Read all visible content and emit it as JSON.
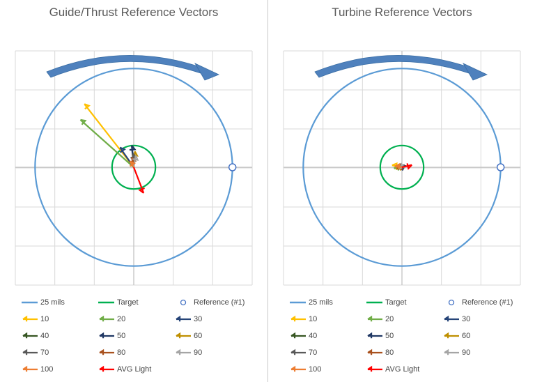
{
  "chart_data": [
    {
      "type": "scatter",
      "title": "Guide/Thrust Reference Vectors",
      "xlim": [
        -30,
        30
      ],
      "ylim": [
        -30,
        30
      ],
      "grid": true,
      "legend_position": "bottom",
      "circles": [
        {
          "name": "25 mils",
          "radius": 25,
          "color": "#5b9bd5"
        },
        {
          "name": "Target",
          "radius": 5.5,
          "color": "#00b050"
        }
      ],
      "reference": {
        "name": "Reference (#1)",
        "x": 25,
        "y": 0,
        "color": "#4472c4"
      },
      "rotation_arrow_color": "#4f81bd",
      "vectors": [
        {
          "name": "10",
          "x": -12.5,
          "y": 16,
          "color": "#ffc000"
        },
        {
          "name": "20",
          "x": -13.5,
          "y": 12,
          "color": "#70ad47"
        },
        {
          "name": "30",
          "x": -3.5,
          "y": 5,
          "color": "#264478"
        },
        {
          "name": "40",
          "x": -0.5,
          "y": 5.5,
          "color": "#375623"
        },
        {
          "name": "50",
          "x": -0.5,
          "y": 5.5,
          "color": "#203864"
        },
        {
          "name": "60",
          "x": 0.3,
          "y": 4,
          "color": "#bf8f00"
        },
        {
          "name": "70",
          "x": -0.2,
          "y": 3.5,
          "color": "#595959"
        },
        {
          "name": "80",
          "x": -0.5,
          "y": 2.5,
          "color": "#a9511e"
        },
        {
          "name": "90",
          "x": 0.5,
          "y": 3,
          "color": "#a5a5a5"
        },
        {
          "name": "100",
          "x": -1,
          "y": 1.5,
          "color": "#ed7d31"
        },
        {
          "name": "AVG Light",
          "x": 2.5,
          "y": -6.5,
          "color": "#ff0000"
        }
      ]
    },
    {
      "type": "scatter",
      "title": "Turbine Reference Vectors",
      "xlim": [
        -30,
        30
      ],
      "ylim": [
        -30,
        30
      ],
      "grid": true,
      "legend_position": "bottom",
      "circles": [
        {
          "name": "25 mils",
          "radius": 25,
          "color": "#5b9bd5"
        },
        {
          "name": "Target",
          "radius": 5.5,
          "color": "#00b050"
        }
      ],
      "reference": {
        "name": "Reference (#1)",
        "x": 25,
        "y": 0,
        "color": "#4472c4"
      },
      "rotation_arrow_color": "#4f81bd",
      "vectors": [
        {
          "name": "10",
          "x": -2.5,
          "y": 0.5,
          "color": "#ffc000"
        },
        {
          "name": "20",
          "x": -2,
          "y": -0.3,
          "color": "#70ad47"
        },
        {
          "name": "30",
          "x": -1.5,
          "y": 0.3,
          "color": "#264478"
        },
        {
          "name": "40",
          "x": -1,
          "y": -0.5,
          "color": "#375623"
        },
        {
          "name": "50",
          "x": -0.5,
          "y": 0.3,
          "color": "#203864"
        },
        {
          "name": "60",
          "x": -1.5,
          "y": -0.5,
          "color": "#bf8f00"
        },
        {
          "name": "70",
          "x": -0.8,
          "y": 0.4,
          "color": "#595959"
        },
        {
          "name": "80",
          "x": -1.2,
          "y": -0.3,
          "color": "#a9511e"
        },
        {
          "name": "90",
          "x": -0.5,
          "y": -0.4,
          "color": "#a5a5a5"
        },
        {
          "name": "100",
          "x": -1.8,
          "y": 0.2,
          "color": "#ed7d31"
        },
        {
          "name": "AVG Light",
          "x": 2.5,
          "y": 0.6,
          "color": "#ff0000"
        }
      ]
    }
  ]
}
